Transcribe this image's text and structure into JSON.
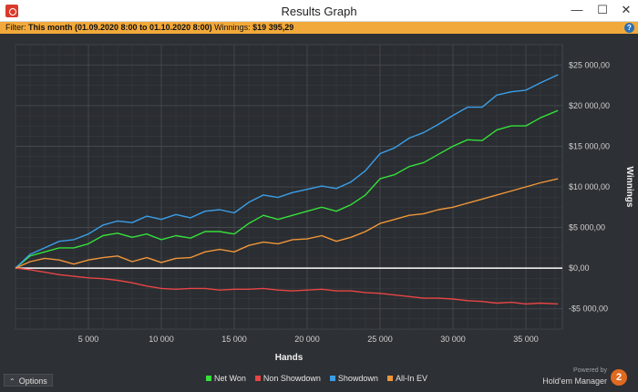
{
  "window": {
    "title": "Results Graph",
    "minimize_glyph": "—",
    "maximize_glyph": "☐",
    "close_glyph": "✕",
    "app_icon": "holdem-manager-icon"
  },
  "filter_bar": {
    "filter_label": "Filter:",
    "filter_value": "This month (01.09.2020 8:00 to 01.10.2020 8:00)",
    "winnings_label": "Winnings:",
    "winnings_value": "$19 395,29",
    "help_glyph": "?"
  },
  "footer": {
    "options_label": "Options",
    "options_icon": "chevron-up-icon",
    "powered_by": "Powered by",
    "brand_name": "Hold'em Manager",
    "brand_logo_text": "2"
  },
  "chart_data": {
    "type": "line",
    "xlabel": "Hands",
    "ylabel": "Winnings",
    "xlim": [
      0,
      37500
    ],
    "ylim": [
      -7500,
      27500
    ],
    "x_ticks": [
      5000,
      10000,
      15000,
      20000,
      25000,
      30000,
      35000
    ],
    "x_tick_labels": [
      "5 000",
      "10 000",
      "15 000",
      "20 000",
      "25 000",
      "30 000",
      "35 000"
    ],
    "y_ticks": [
      -5000,
      0,
      5000,
      10000,
      15000,
      20000,
      25000
    ],
    "y_tick_labels": [
      "-$5 000,00",
      "$0,00",
      "$5 000,00",
      "$10 000,00",
      "$15 000,00",
      "$20 000,00",
      "$25 000,00"
    ],
    "grid": true,
    "legend_position": "bottom-center",
    "background": "#2d3034",
    "series": [
      {
        "name": "Net Won",
        "color": "#35e03a",
        "x": [
          0,
          1000,
          2000,
          3000,
          4000,
          5000,
          6000,
          7000,
          8000,
          9000,
          10000,
          11000,
          12000,
          13000,
          14000,
          15000,
          16000,
          17000,
          18000,
          19000,
          20000,
          21000,
          22000,
          23000,
          24000,
          25000,
          26000,
          27000,
          28000,
          29000,
          30000,
          31000,
          32000,
          33000,
          34000,
          35000,
          36000,
          37200
        ],
        "y": [
          0,
          1500,
          2000,
          2500,
          2500,
          3000,
          4000,
          4300,
          3800,
          4200,
          3500,
          4000,
          3700,
          4500,
          4500,
          4200,
          5500,
          6500,
          6000,
          6500,
          7000,
          7500,
          7000,
          7800,
          9000,
          11000,
          11500,
          12500,
          13000,
          14000,
          15000,
          15800,
          15700,
          17000,
          17500,
          17500,
          18500,
          19400
        ]
      },
      {
        "name": "Non Showdown",
        "color": "#e84545",
        "x": [
          0,
          1000,
          2000,
          3000,
          4000,
          5000,
          6000,
          7000,
          8000,
          9000,
          10000,
          11000,
          12000,
          13000,
          14000,
          15000,
          16000,
          17000,
          18000,
          19000,
          20000,
          21000,
          22000,
          23000,
          24000,
          25000,
          26000,
          27000,
          28000,
          29000,
          30000,
          31000,
          32000,
          33000,
          34000,
          35000,
          36000,
          37200
        ],
        "y": [
          0,
          -200,
          -500,
          -800,
          -1000,
          -1200,
          -1300,
          -1500,
          -1800,
          -2200,
          -2500,
          -2600,
          -2500,
          -2500,
          -2700,
          -2600,
          -2600,
          -2500,
          -2700,
          -2800,
          -2700,
          -2600,
          -2800,
          -2800,
          -3000,
          -3100,
          -3300,
          -3500,
          -3700,
          -3700,
          -3800,
          -4000,
          -4100,
          -4300,
          -4200,
          -4400,
          -4300,
          -4400
        ]
      },
      {
        "name": "Showdown",
        "color": "#3b9ee8",
        "x": [
          0,
          1000,
          2000,
          3000,
          4000,
          5000,
          6000,
          7000,
          8000,
          9000,
          10000,
          11000,
          12000,
          13000,
          14000,
          15000,
          16000,
          17000,
          18000,
          19000,
          20000,
          21000,
          22000,
          23000,
          24000,
          25000,
          26000,
          27000,
          28000,
          29000,
          30000,
          31000,
          32000,
          33000,
          34000,
          35000,
          36000,
          37200
        ],
        "y": [
          0,
          1700,
          2500,
          3300,
          3500,
          4200,
          5300,
          5800,
          5600,
          6400,
          6000,
          6600,
          6200,
          7000,
          7200,
          6800,
          8100,
          9000,
          8700,
          9300,
          9700,
          10100,
          9800,
          10600,
          12000,
          14100,
          14800,
          16000,
          16700,
          17700,
          18800,
          19800,
          19800,
          21300,
          21700,
          21900,
          22800,
          23800
        ]
      },
      {
        "name": "All-In EV",
        "color": "#f0963a",
        "x": [
          0,
          1000,
          2000,
          3000,
          4000,
          5000,
          6000,
          7000,
          8000,
          9000,
          10000,
          11000,
          12000,
          13000,
          14000,
          15000,
          16000,
          17000,
          18000,
          19000,
          20000,
          21000,
          22000,
          23000,
          24000,
          25000,
          26000,
          27000,
          28000,
          29000,
          30000,
          31000,
          32000,
          33000,
          34000,
          35000,
          36000,
          37200
        ],
        "y": [
          0,
          800,
          1200,
          1000,
          500,
          1000,
          1300,
          1500,
          800,
          1300,
          700,
          1200,
          1300,
          2000,
          2300,
          2000,
          2800,
          3200,
          3000,
          3500,
          3600,
          4000,
          3300,
          3800,
          4500,
          5500,
          6000,
          6500,
          6700,
          7200,
          7500,
          8000,
          8500,
          9000,
          9500,
          10000,
          10500,
          11000
        ]
      }
    ]
  }
}
